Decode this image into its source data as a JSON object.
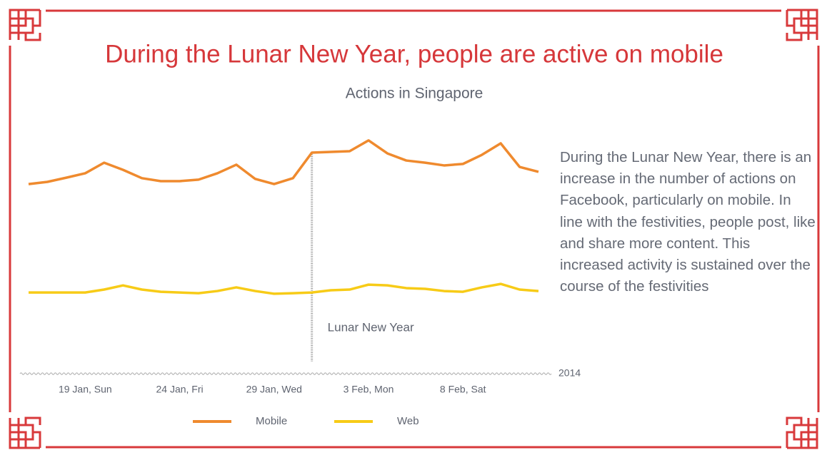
{
  "chart_data": {
    "type": "line",
    "title": "During the Lunar New Year, people are active on mobile",
    "subtitle": "Actions in Singapore",
    "description": "During the Lunar New Year, there is an increase in the number of actions on Facebook, particularly on mobile. In line with the festivities, people post, like and share more content. This increased activity is sustained over the course of the festivities",
    "x_axis_note": "2014",
    "categories": [
      null,
      null,
      null,
      "19 Jan, Sun",
      null,
      null,
      null,
      null,
      "24 Jan, Fri",
      null,
      null,
      null,
      null,
      "29 Jan, Wed",
      null,
      null,
      null,
      null,
      "3 Feb, Mon",
      null,
      null,
      null,
      null,
      "8 Feb, Sat",
      null,
      null,
      null,
      null
    ],
    "series": [
      {
        "name": "Mobile",
        "color": "#ef8a2e",
        "values": [
          77.3,
          78.2,
          79.9,
          81.7,
          86.0,
          83.1,
          79.7,
          78.5,
          78.5,
          79.1,
          81.7,
          85.2,
          79.4,
          77.3,
          79.7,
          90.1,
          90.4,
          90.7,
          95.1,
          89.8,
          86.9,
          86.0,
          84.9,
          85.5,
          89.2,
          93.9,
          84.3,
          82.3
        ]
      },
      {
        "name": "Web",
        "color": "#f7cb17",
        "values": [
          33.1,
          33.1,
          33.1,
          33.1,
          34.3,
          36.0,
          34.3,
          33.4,
          33.1,
          32.8,
          33.7,
          35.2,
          33.7,
          32.6,
          32.8,
          33.1,
          34.0,
          34.3,
          36.3,
          36.0,
          34.9,
          34.6,
          33.7,
          33.4,
          35.2,
          36.6,
          34.3,
          33.7
        ]
      }
    ],
    "ylim": [
      0,
      100
    ],
    "annotation": {
      "label": "Lunar New Year",
      "at_index": 15
    },
    "grid": false
  }
}
